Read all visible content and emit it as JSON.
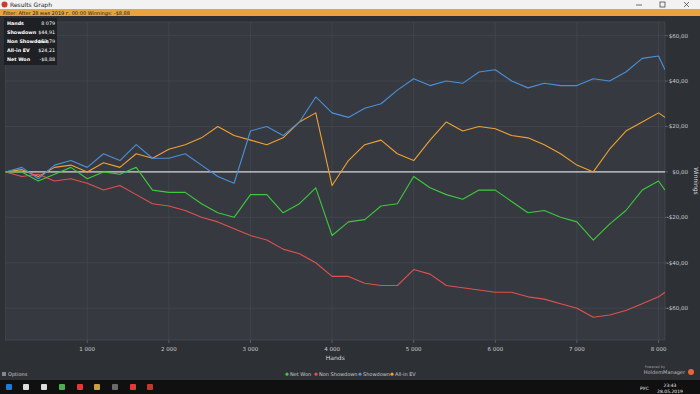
{
  "window": {
    "title": "Results Graph",
    "filter": "Filter: After 28 мая 2019 г. 00:00  Winnings: -$8,88",
    "stats": [
      {
        "label": "Hands",
        "value": "8 079"
      },
      {
        "label": "Showdown",
        "value": "$44,91"
      },
      {
        "label": "Non Showdown",
        "value": "-$53,79"
      },
      {
        "label": "All-in EV",
        "value": "$24,21"
      },
      {
        "label": "Net Won",
        "value": "-$8,88"
      }
    ],
    "options": "Options",
    "powered": "Powered by",
    "brand": "HoldemManager",
    "taskbar": {
      "language": "РУС",
      "time": "23:43",
      "date": "28.05.2019"
    }
  },
  "chart_data": {
    "type": "line",
    "x_label": "Hands",
    "y_label": "Winnings",
    "grid": true,
    "legend": "bottom",
    "x": [
      0,
      200,
      400,
      600,
      800,
      1000,
      1200,
      1400,
      1600,
      1800,
      2000,
      2200,
      2400,
      2600,
      2800,
      3000,
      3200,
      3400,
      3600,
      3800,
      4000,
      4200,
      4400,
      4600,
      4800,
      5000,
      5200,
      5400,
      5600,
      5800,
      6000,
      6200,
      6400,
      6600,
      6800,
      7000,
      7200,
      7400,
      7600,
      7800,
      8000,
      8079
    ],
    "xlim": [
      0,
      8079
    ],
    "xticks": [
      {
        "value": 1000,
        "label": "1 000"
      },
      {
        "value": 2000,
        "label": "2 000"
      },
      {
        "value": 3000,
        "label": "3 000"
      },
      {
        "value": 4000,
        "label": "4 000"
      },
      {
        "value": 5000,
        "label": "5 000"
      },
      {
        "value": 6000,
        "label": "6 000"
      },
      {
        "value": 7000,
        "label": "7 000"
      },
      {
        "value": 8000,
        "label": "8 000"
      }
    ],
    "ylim": [
      -74,
      66
    ],
    "yticks": [
      {
        "value": -60,
        "label": "-$60,00"
      },
      {
        "value": -40,
        "label": "-$40,00"
      },
      {
        "value": -20,
        "label": "-$20,00"
      },
      {
        "value": 0,
        "label": "$0,00"
      },
      {
        "value": 20,
        "label": "$20,00"
      },
      {
        "value": 40,
        "label": "$40,00"
      },
      {
        "value": 60,
        "label": "$60,00"
      }
    ],
    "series": [
      {
        "name": "Net Won",
        "color": "#3ec83e",
        "values": [
          0,
          0,
          -4,
          -1,
          2,
          -3,
          0,
          -1,
          2,
          -8,
          -9,
          -9,
          -14,
          -18,
          -20,
          -10,
          -10,
          -18,
          -14,
          -7,
          -28,
          -22,
          -21,
          -15,
          -14,
          -2,
          -7,
          -10,
          -12,
          -8,
          -8,
          -13,
          -18,
          -17,
          -20,
          -22,
          -30,
          -23,
          -17,
          -8,
          -4,
          -8
        ]
      },
      {
        "name": "Non Showdown",
        "color": "#e05050",
        "values": [
          0,
          -2,
          -1,
          -4,
          -3,
          -5,
          -8,
          -6,
          -10,
          -14,
          -15,
          -17,
          -20,
          -22,
          -25,
          -28,
          -30,
          -34,
          -36,
          -40,
          -46,
          -46,
          -49,
          -50,
          -50,
          -43,
          -45,
          -50,
          -51,
          -52,
          -53,
          -53,
          -55,
          -56,
          -58,
          -60,
          -64,
          -63,
          -61,
          -58,
          -55,
          -53
        ]
      },
      {
        "name": "Showdown",
        "color": "#4a90d9",
        "values": [
          0,
          2,
          -3,
          3,
          5,
          2,
          8,
          5,
          12,
          6,
          6,
          8,
          3,
          -2,
          -5,
          18,
          20,
          16,
          22,
          33,
          26,
          24,
          28,
          30,
          36,
          41,
          38,
          40,
          39,
          44,
          45,
          40,
          37,
          39,
          38,
          38,
          41,
          40,
          44,
          50,
          51,
          45
        ]
      },
      {
        "name": "All-in EV",
        "color": "#f0a030",
        "values": [
          0,
          1,
          -2,
          2,
          3,
          0,
          4,
          2,
          8,
          6,
          10,
          12,
          15,
          20,
          16,
          14,
          12,
          15,
          22,
          26,
          -6,
          5,
          12,
          14,
          8,
          5,
          14,
          22,
          18,
          20,
          19,
          16,
          15,
          12,
          8,
          3,
          0,
          10,
          18,
          22,
          26,
          24
        ]
      }
    ]
  }
}
